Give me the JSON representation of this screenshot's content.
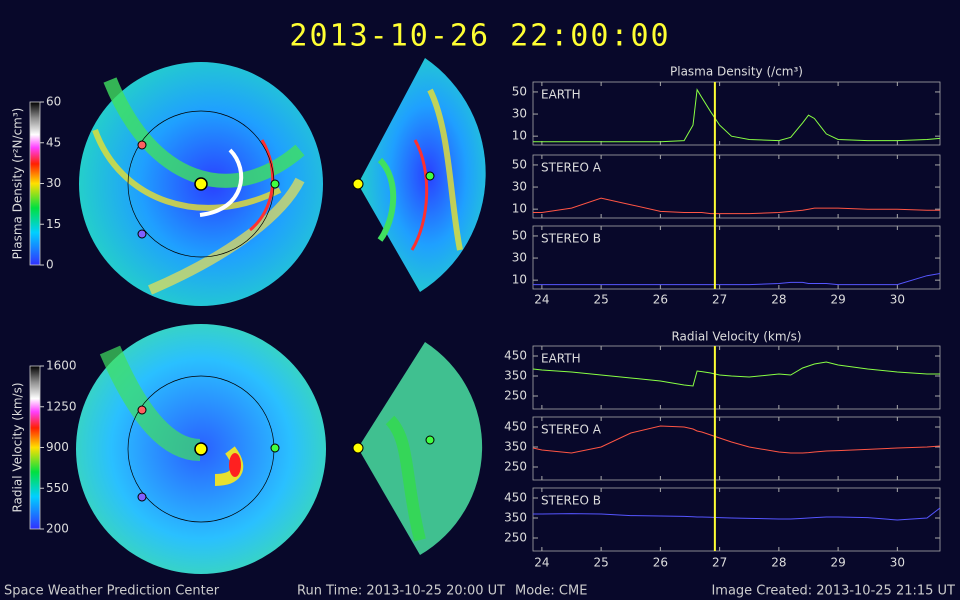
{
  "title": "2013-10-26 22:00:00",
  "footer": {
    "center": "Space Weather Prediction Center",
    "run_time": "Run Time: 2013-10-25 20:00 UT",
    "mode": "Mode: CME",
    "created": "Image Created: 2013-10-25 21:15 UT"
  },
  "colorbars": [
    {
      "label": "Plasma Density (r²N/cm³)",
      "range": [
        0,
        60
      ],
      "ticks": [
        0,
        15,
        30,
        45,
        60
      ]
    },
    {
      "label": "Radial Velocity (km/s)",
      "range": [
        200,
        1600
      ],
      "ticks": [
        200,
        550,
        900,
        1250,
        1600
      ]
    }
  ],
  "chart_data": [
    {
      "type": "line",
      "title": "Plasma Density (/cm³)",
      "xlim": [
        23.85,
        30.72
      ],
      "xticks": [
        24,
        25,
        26,
        27,
        28,
        29,
        30
      ],
      "now_line": 26.92,
      "now_color": "#ffff33",
      "x": [
        23.85,
        24,
        24.5,
        25,
        25.5,
        26,
        26.4,
        26.55,
        26.62,
        26.7,
        26.85,
        27,
        27.2,
        27.5,
        28,
        28.2,
        28.4,
        28.5,
        28.6,
        28.8,
        29,
        29.5,
        30,
        30.5,
        30.72
      ],
      "panels": [
        {
          "label": "EARTH",
          "color": "#88ff44",
          "ylim": [
            2,
            59
          ],
          "yticks": [
            10,
            30,
            50
          ],
          "values": [
            5,
            5,
            5,
            5,
            5,
            5,
            6,
            20,
            52,
            45,
            32,
            20,
            10,
            7,
            6,
            9,
            22,
            29,
            26,
            12,
            7,
            6,
            6,
            7,
            8
          ]
        },
        {
          "label": "STEREO A",
          "color": "#ff5544",
          "ylim": [
            2,
            59
          ],
          "yticks": [
            10,
            30,
            50
          ],
          "values": [
            7,
            7,
            11,
            20,
            14,
            8,
            7,
            7,
            7,
            7,
            6,
            6,
            6,
            6,
            7,
            8,
            9,
            10,
            11,
            11,
            11,
            10,
            10,
            9,
            9
          ]
        },
        {
          "label": "STEREO B",
          "color": "#5555ff",
          "ylim": [
            2,
            59
          ],
          "yticks": [
            10,
            30,
            50
          ],
          "values": [
            6,
            6,
            6,
            6,
            6,
            6,
            6,
            6,
            6,
            6,
            6,
            6,
            6,
            6,
            7,
            8,
            8,
            7,
            7,
            7,
            6,
            6,
            6,
            14,
            16
          ]
        }
      ]
    },
    {
      "type": "line",
      "title": "Radial Velocity (km/s)",
      "xlim": [
        23.85,
        30.72
      ],
      "xticks": [
        24,
        25,
        26,
        27,
        28,
        29,
        30
      ],
      "now_line": 26.92,
      "now_color": "#ffff33",
      "x": [
        23.85,
        24,
        24.5,
        25,
        25.5,
        26,
        26.4,
        26.55,
        26.62,
        26.7,
        26.85,
        27,
        27.2,
        27.5,
        28,
        28.2,
        28.4,
        28.5,
        28.6,
        28.8,
        29,
        29.5,
        30,
        30.5,
        30.72
      ],
      "panels": [
        {
          "label": "EARTH",
          "color": "#88ff44",
          "ylim": [
            185,
            500
          ],
          "yticks": [
            250,
            350,
            450
          ],
          "values": [
            385,
            380,
            370,
            355,
            340,
            325,
            305,
            300,
            375,
            372,
            365,
            355,
            350,
            345,
            360,
            355,
            390,
            400,
            410,
            420,
            405,
            385,
            370,
            360,
            360
          ]
        },
        {
          "label": "STEREO A",
          "color": "#ff5544",
          "ylim": [
            185,
            500
          ],
          "yticks": [
            250,
            350,
            450
          ],
          "values": [
            345,
            335,
            320,
            350,
            420,
            455,
            450,
            440,
            430,
            425,
            410,
            395,
            375,
            350,
            325,
            320,
            320,
            322,
            325,
            330,
            332,
            338,
            345,
            350,
            355
          ]
        },
        {
          "label": "STEREO B",
          "color": "#5555ff",
          "ylim": [
            185,
            500
          ],
          "yticks": [
            250,
            350,
            450
          ],
          "values": [
            370,
            370,
            372,
            370,
            362,
            360,
            358,
            356,
            355,
            355,
            354,
            352,
            350,
            348,
            345,
            345,
            348,
            350,
            352,
            355,
            355,
            352,
            340,
            350,
            400
          ]
        }
      ]
    }
  ]
}
